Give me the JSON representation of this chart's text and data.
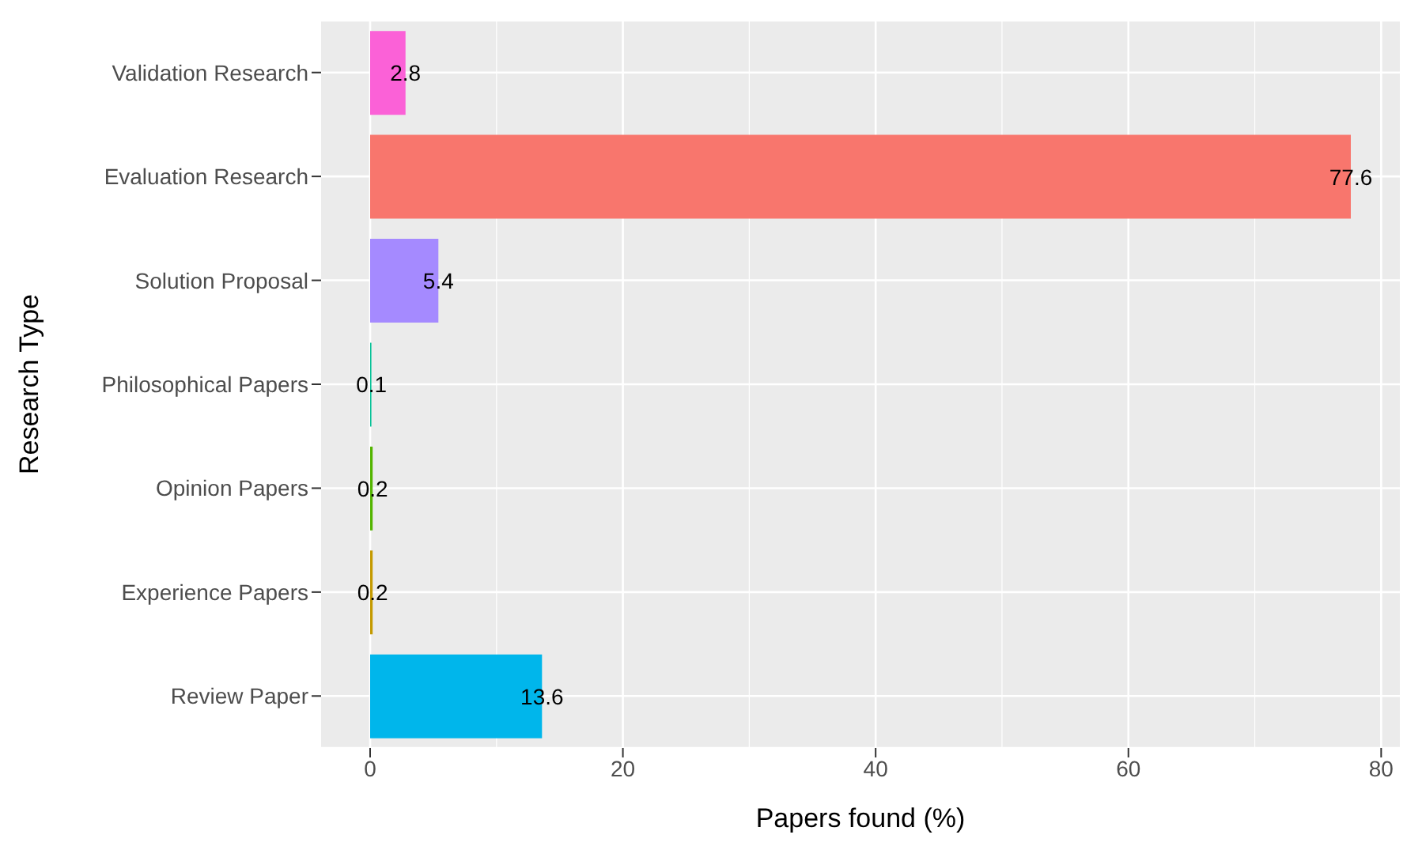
{
  "chart_data": {
    "type": "bar",
    "orientation": "horizontal",
    "xlabel": "Papers found (%)",
    "ylabel": "Research Type",
    "categories": [
      "Validation Research",
      "Evaluation Research",
      "Solution Proposal",
      "Philosophical Papers",
      "Opinion Papers",
      "Experience Papers",
      "Review Paper"
    ],
    "values": [
      2.8,
      77.6,
      5.4,
      0.1,
      0.2,
      0.2,
      13.6
    ],
    "colors": [
      "#fb61d7",
      "#f8766d",
      "#a58aff",
      "#00c094",
      "#53b400",
      "#c49a00",
      "#00b6eb"
    ],
    "xlim": [
      -3.88,
      81.48
    ],
    "xticks": [
      0,
      20,
      40,
      60,
      80
    ],
    "grid": true,
    "data_labels": true,
    "legend": false
  }
}
